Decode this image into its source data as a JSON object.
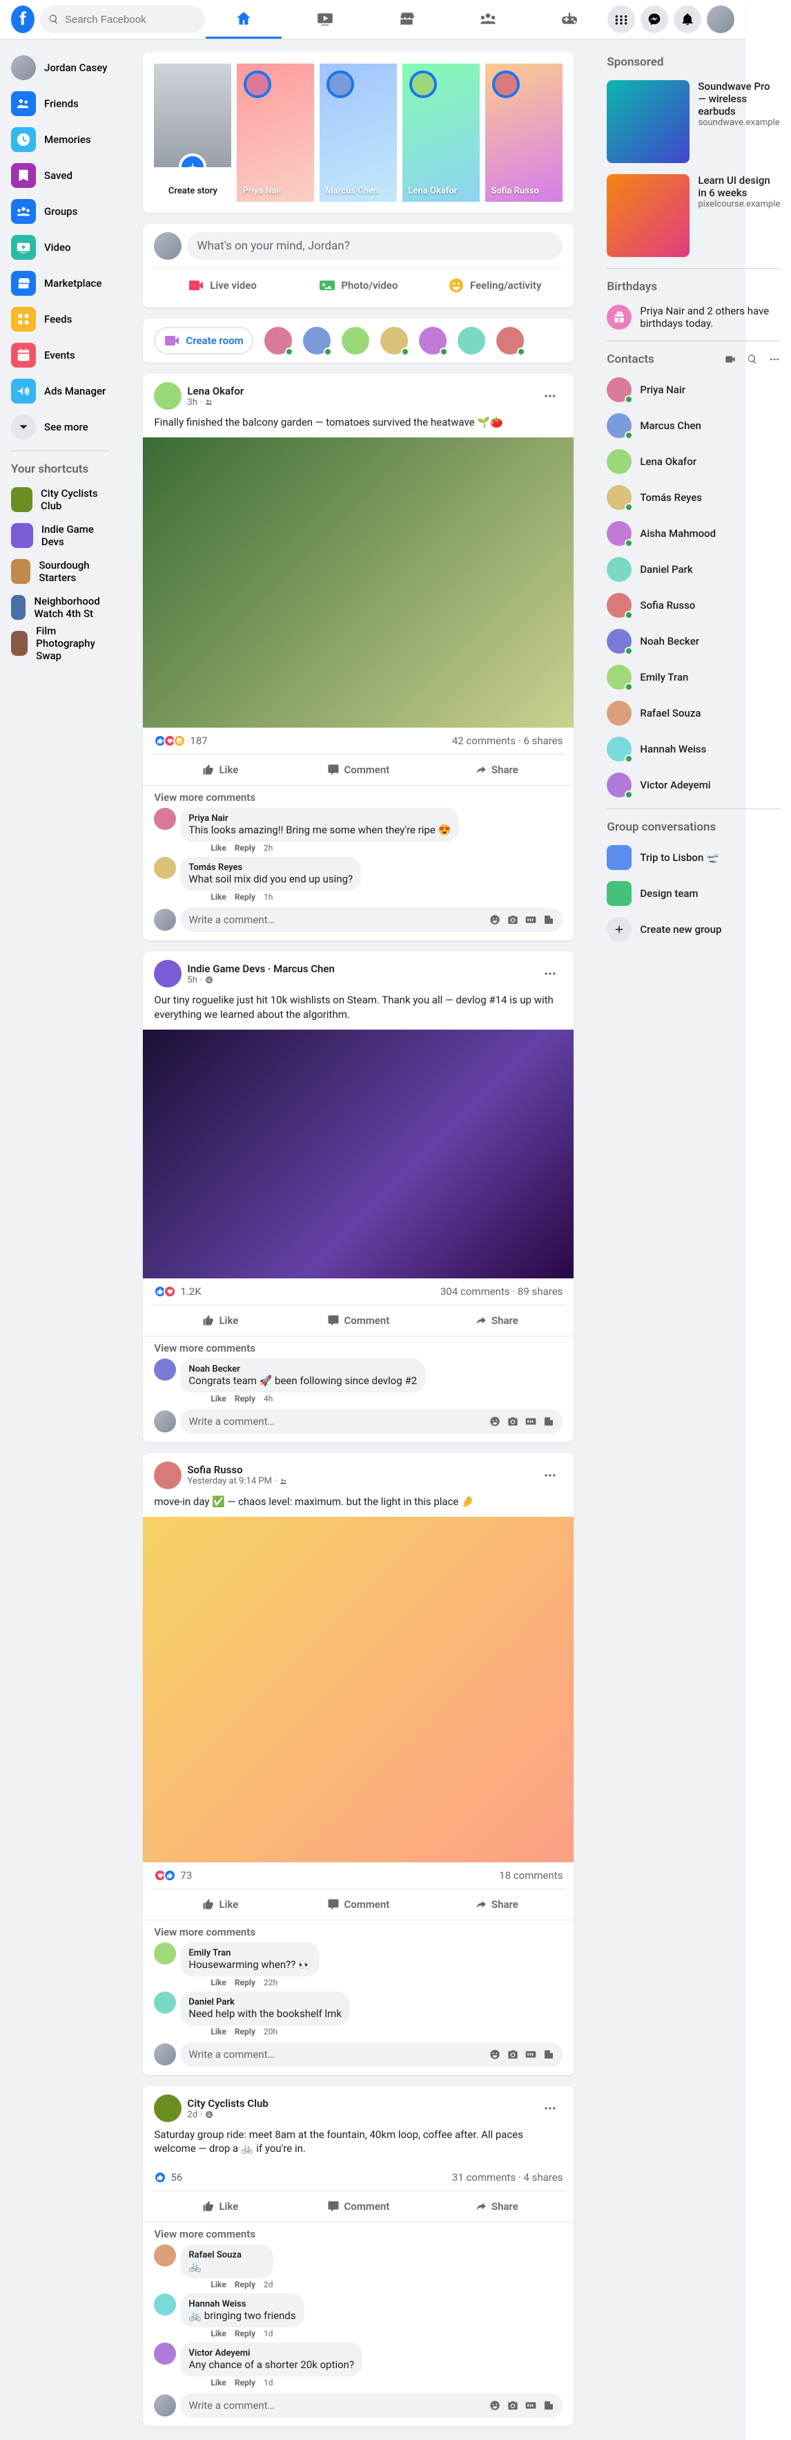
{
  "colors": {
    "primary": "#1877f2",
    "bg": "#f0f2f5",
    "card": "#ffffff",
    "text": "#050505",
    "muted": "#65676b",
    "divider": "#ced0d4",
    "online": "#31a24c",
    "like": "#1877f2",
    "love": "#f33e58",
    "haha": "#f7b125"
  },
  "header": {
    "search_placeholder": "Search Facebook",
    "tabs": [
      {
        "name": "home",
        "active": true
      },
      {
        "name": "watch",
        "active": false
      },
      {
        "name": "marketplace",
        "active": false
      },
      {
        "name": "groups",
        "active": false
      },
      {
        "name": "gaming",
        "active": false
      }
    ]
  },
  "left_nav": {
    "user_name": "Jordan Casey",
    "items": [
      {
        "name": "friends",
        "label": "Friends",
        "bg": "#1877f2"
      },
      {
        "name": "memories",
        "label": "Memories",
        "bg": "#34b7f1"
      },
      {
        "name": "saved",
        "label": "Saved",
        "bg": "#a033b4"
      },
      {
        "name": "groups",
        "label": "Groups",
        "bg": "#1877f2"
      },
      {
        "name": "video",
        "label": "Video",
        "bg": "#2abba7"
      },
      {
        "name": "marketplace",
        "label": "Marketplace",
        "bg": "#1877f2"
      },
      {
        "name": "feeds",
        "label": "Feeds",
        "bg": "#f7b928"
      },
      {
        "name": "events",
        "label": "Events",
        "bg": "#f35369"
      },
      {
        "name": "ads",
        "label": "Ads Manager",
        "bg": "#34b7f1"
      },
      {
        "name": "more",
        "label": "See more",
        "bg": "#e4e6eb",
        "chevron": true
      }
    ],
    "shortcuts_heading": "Your shortcuts",
    "shortcuts": [
      {
        "label": "City Cyclists Club",
        "bg": "#6b8e23"
      },
      {
        "label": "Indie Game Devs",
        "bg": "#7b5cd6"
      },
      {
        "label": "Sourdough Starters",
        "bg": "#c28a4a"
      },
      {
        "label": "Neighborhood Watch 4th St",
        "bg": "#4a6fa5"
      },
      {
        "label": "Film Photography Swap",
        "bg": "#8a5a44"
      }
    ]
  },
  "right_col": {
    "sponsored_heading": "Sponsored",
    "sponsored": [
      {
        "title": "Soundwave Pro — wireless earbuds",
        "url": "soundwave.example",
        "bg": "linear-gradient(135deg,#0fb5ae,#4046ca)"
      },
      {
        "title": "Learn UI design in 6 weeks",
        "url": "pixelcourse.example",
        "bg": "linear-gradient(135deg,#f68511,#de3d82)"
      }
    ],
    "birthdays_heading": "Birthdays",
    "birthday_text": "Priya Nair and 2 others have birthdays today.",
    "contacts_heading": "Contacts",
    "contacts": [
      {
        "name": "Priya Nair",
        "bg": "#d97a9a",
        "online": true
      },
      {
        "name": "Marcus Chen",
        "bg": "#7a9ad9",
        "online": true
      },
      {
        "name": "Lena Okafor",
        "bg": "#9ad97a",
        "online": false
      },
      {
        "name": "Tomás Reyes",
        "bg": "#d9c27a",
        "online": true
      },
      {
        "name": "Aisha Mahmood",
        "bg": "#c27ad9",
        "online": true
      },
      {
        "name": "Daniel Park",
        "bg": "#7ad9c2",
        "online": false
      },
      {
        "name": "Sofia Russo",
        "bg": "#d97a7a",
        "online": true
      },
      {
        "name": "Noah Becker",
        "bg": "#7a7ad9",
        "online": true
      },
      {
        "name": "Emily Tran",
        "bg": "#a0d97a",
        "online": true
      },
      {
        "name": "Rafael Souza",
        "bg": "#d9a07a",
        "online": false
      },
      {
        "name": "Hannah Weiss",
        "bg": "#7ad9d9",
        "online": true
      },
      {
        "name": "Victor Adeyemi",
        "bg": "#b07ad9",
        "online": true
      }
    ],
    "group_convos_heading": "Group conversations",
    "group_convos": [
      {
        "name": "Trip to Lisbon 🛫",
        "bg": "#5b8def"
      },
      {
        "name": "Design team",
        "bg": "#44c17b"
      }
    ],
    "new_group_label": "Create new group"
  },
  "stories": {
    "create_label": "Create story",
    "items": [
      {
        "name": "Priya Nair",
        "bg": "linear-gradient(160deg,#ff9a9e,#fad0c4)",
        "ring": "#d97a9a"
      },
      {
        "name": "Marcus Chen",
        "bg": "linear-gradient(160deg,#a1c4fd,#c2e9fb)",
        "ring": "#7a9ad9"
      },
      {
        "name": "Lena Okafor",
        "bg": "linear-gradient(160deg,#84fab0,#8fd3f4)",
        "ring": "#9ad97a"
      },
      {
        "name": "Sofia Russo",
        "bg": "linear-gradient(160deg,#fccb90,#d57eeb)",
        "ring": "#d97a7a"
      }
    ]
  },
  "composer": {
    "placeholder": "What's on your mind, Jordan?",
    "live_label": "Live video",
    "photo_label": "Photo/video",
    "feeling_label": "Feeling/activity",
    "live_color": "#f3425f",
    "photo_color": "#45bd62",
    "feeling_color": "#f7b928"
  },
  "rooms": {
    "button_label": "Create room",
    "avatars": [
      {
        "bg": "#d97a9a",
        "online": true
      },
      {
        "bg": "#7a9ad9",
        "online": true
      },
      {
        "bg": "#9ad97a",
        "online": false
      },
      {
        "bg": "#d9c27a",
        "online": true
      },
      {
        "bg": "#c27ad9",
        "online": true
      },
      {
        "bg": "#7ad9c2",
        "online": false
      },
      {
        "bg": "#d97a7a",
        "online": true
      }
    ]
  },
  "post_ui": {
    "like": "Like",
    "comment": "Comment",
    "share": "Share",
    "view_more_comments": "View more comments",
    "write_comment_placeholder": "Write a comment…",
    "reply": "Reply",
    "like_action": "Like"
  },
  "posts": [
    {
      "author": "Lena Okafor",
      "avatar_bg": "#9ad97a",
      "time": "3h",
      "privacy": "friends",
      "text": "Finally finished the balcony garden — tomatoes survived the heatwave 🌱🍅",
      "media_bg": "linear-gradient(135deg,#3a6b35,#cbd18f)",
      "media_h": 420,
      "reactions": {
        "count": "187",
        "types": [
          "like",
          "love",
          "haha"
        ]
      },
      "comments_count": "42 comments",
      "shares_count": "6 shares",
      "comments": [
        {
          "who": "Priya Nair",
          "avatar_bg": "#d97a9a",
          "txt": "This looks amazing!! Bring me some when they're ripe 😍",
          "time": "2h"
        },
        {
          "who": "Tomás Reyes",
          "avatar_bg": "#d9c27a",
          "txt": "What soil mix did you end up using?",
          "time": "1h"
        }
      ]
    },
    {
      "author": "Indie Game Devs",
      "avatar_bg": "#7b5cd6",
      "time": "5h",
      "privacy": "public",
      "suffix": " · Marcus Chen",
      "text": "Our tiny roguelike just hit 10k wishlists on Steam. Thank you all — devlog #14 is up with everything we learned about the algorithm.",
      "media_bg": "linear-gradient(135deg,#1b1035,#6441a5 60%,#2a0845)",
      "media_h": 360,
      "reactions": {
        "count": "1.2K",
        "types": [
          "like",
          "love"
        ]
      },
      "comments_count": "304 comments",
      "shares_count": "89 shares",
      "comments": [
        {
          "who": "Noah Becker",
          "avatar_bg": "#7a7ad9",
          "txt": "Congrats team 🚀 been following since devlog #2",
          "time": "4h"
        }
      ]
    },
    {
      "author": "Sofia Russo",
      "avatar_bg": "#d97a7a",
      "time": "Yesterday at 9:14 PM",
      "privacy": "friends",
      "text": "move-in day ✅ — chaos level: maximum. but the light in this place 🤌",
      "media_bg": "linear-gradient(135deg,#f6d365,#fda085)",
      "media_h": 500,
      "reactions": {
        "count": "73",
        "types": [
          "love",
          "like"
        ]
      },
      "comments_count": "18 comments",
      "shares_count": "",
      "comments": [
        {
          "who": "Emily Tran",
          "avatar_bg": "#a0d97a",
          "txt": "Housewarming when?? 👀",
          "time": "22h"
        },
        {
          "who": "Daniel Park",
          "avatar_bg": "#7ad9c2",
          "txt": "Need help with the bookshelf lmk",
          "time": "20h"
        }
      ]
    },
    {
      "author": "City Cyclists Club",
      "avatar_bg": "#6b8e23",
      "time": "2d",
      "privacy": "public",
      "text": "Saturday group ride: meet 8am at the fountain, 40km loop, coffee after. All paces welcome — drop a 🚲 if you're in.",
      "media_bg": "",
      "media_h": 0,
      "reactions": {
        "count": "56",
        "types": [
          "like"
        ]
      },
      "comments_count": "31 comments",
      "shares_count": "4 shares",
      "comments": [
        {
          "who": "Rafael Souza",
          "avatar_bg": "#d9a07a",
          "txt": "🚲",
          "time": "2d"
        },
        {
          "who": "Hannah Weiss",
          "avatar_bg": "#7ad9d9",
          "txt": "🚲 bringing two friends",
          "time": "1d"
        },
        {
          "who": "Victor Adeyemi",
          "avatar_bg": "#b07ad9",
          "txt": "Any chance of a shorter 20k option?",
          "time": "1d"
        }
      ]
    }
  ]
}
